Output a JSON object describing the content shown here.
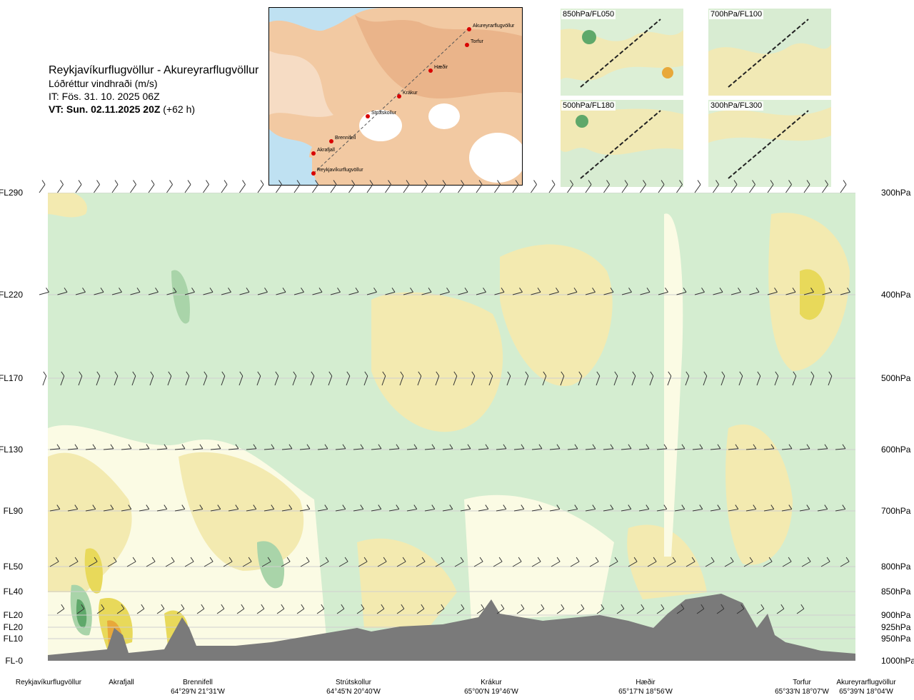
{
  "header": {
    "route": "Reykjavíkurflugvöllur - Akureyrarflugvöllur",
    "parameter": "Lóðréttur vindhraði (m/s)",
    "issue_time": "IT: Fös. 31. 10. 2025 06Z",
    "valid_time_bold": "VT: Sun. 02.11.2025 20Z",
    "valid_time_offset": " (+62 h)"
  },
  "map_inset": {
    "waypoints": [
      "Akureyrarflugvöllur",
      "Torfur",
      "Hæðir",
      "Krákur",
      "Strútskollur",
      "Brennifell",
      "Akrafjall",
      "Reykjavíkurflugvöllur"
    ]
  },
  "panels": [
    {
      "label": "850hPa/FL050"
    },
    {
      "label": "700hPa/FL100"
    },
    {
      "label": "500hPa/FL180"
    },
    {
      "label": "300hPa/FL300"
    }
  ],
  "chart_data": {
    "type": "heatmap",
    "left_axis_labels": [
      "FL290",
      "FL220",
      "FL170",
      "FL130",
      "FL90",
      "FL50",
      "FL40",
      "FL20",
      "FL20",
      "FL10",
      "FL-0"
    ],
    "right_axis_labels": [
      "300hPa",
      "400hPa",
      "500hPa",
      "600hPa",
      "700hPa",
      "800hPa",
      "850hPa",
      "900hPa",
      "925hPa",
      "950hPa",
      "1000hPa"
    ],
    "pressure_levels_hpa": [
      300,
      400,
      500,
      600,
      700,
      800,
      850,
      900,
      925,
      950,
      1000
    ],
    "x_locations": [
      {
        "name": "Reykjavíkurflugvöllur",
        "coord": ""
      },
      {
        "name": "Akrafjall",
        "coord": ""
      },
      {
        "name": "Brennifell",
        "coord": "64°29'N 21°31'W"
      },
      {
        "name": "Strútskollur",
        "coord": "64°45'N 20°40'W"
      },
      {
        "name": "Krákur",
        "coord": "65°00'N 19°46'W"
      },
      {
        "name": "Hæðir",
        "coord": "65°17'N 18°56'W"
      },
      {
        "name": "Torfur",
        "coord": "65°33'N 18°07'W"
      },
      {
        "name": "Akureyrarflugvöllur",
        "coord": "65°39'N 18°04'W"
      }
    ],
    "colors": {
      "strong_down": "#5fa86a",
      "down": "#a9d4a9",
      "weak_down": "#d4edd0",
      "near_zero": "#fbfbe4",
      "weak_up": "#f3eab0",
      "up": "#e8d95a",
      "strong_up": "#e8a83a",
      "terrain": "#7a7a7a"
    }
  }
}
